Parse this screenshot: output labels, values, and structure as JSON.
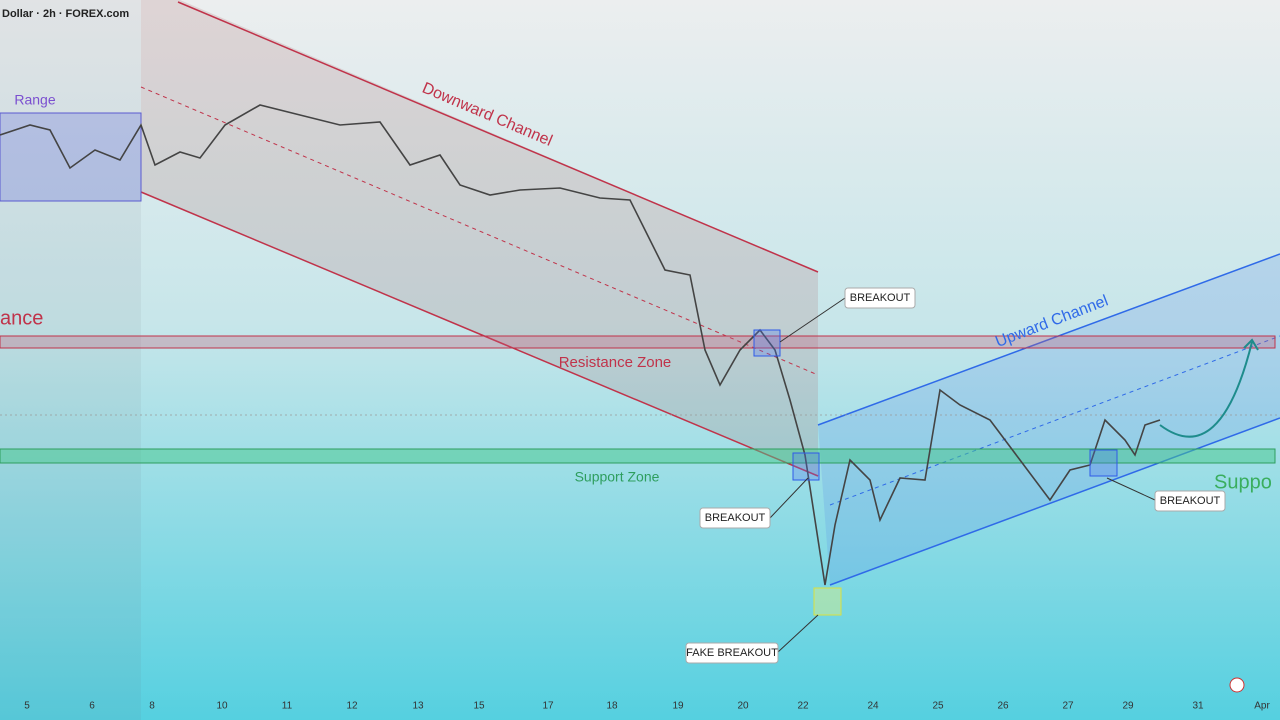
{
  "header": {
    "title": "Dollar · 2h · FOREX.com"
  },
  "annotations": {
    "range": "Range",
    "downward_channel": "Downward Channel",
    "resistance_zone": "Resistance Zone",
    "support_zone": "Support Zone",
    "upward_channel": "Upward Channel",
    "resistance_cut": "ance",
    "support_cut": "Suppo"
  },
  "callouts": [
    "BREAKOUT",
    "BREAKOUT",
    "BREAKOUT",
    "FAKE BREAKOUT"
  ],
  "x_axis": [
    "5",
    "6",
    "8",
    "10",
    "11",
    "12",
    "13",
    "15",
    "17",
    "18",
    "19",
    "20",
    "22",
    "24",
    "25",
    "26",
    "27",
    "29",
    "31",
    "Apr"
  ]
}
